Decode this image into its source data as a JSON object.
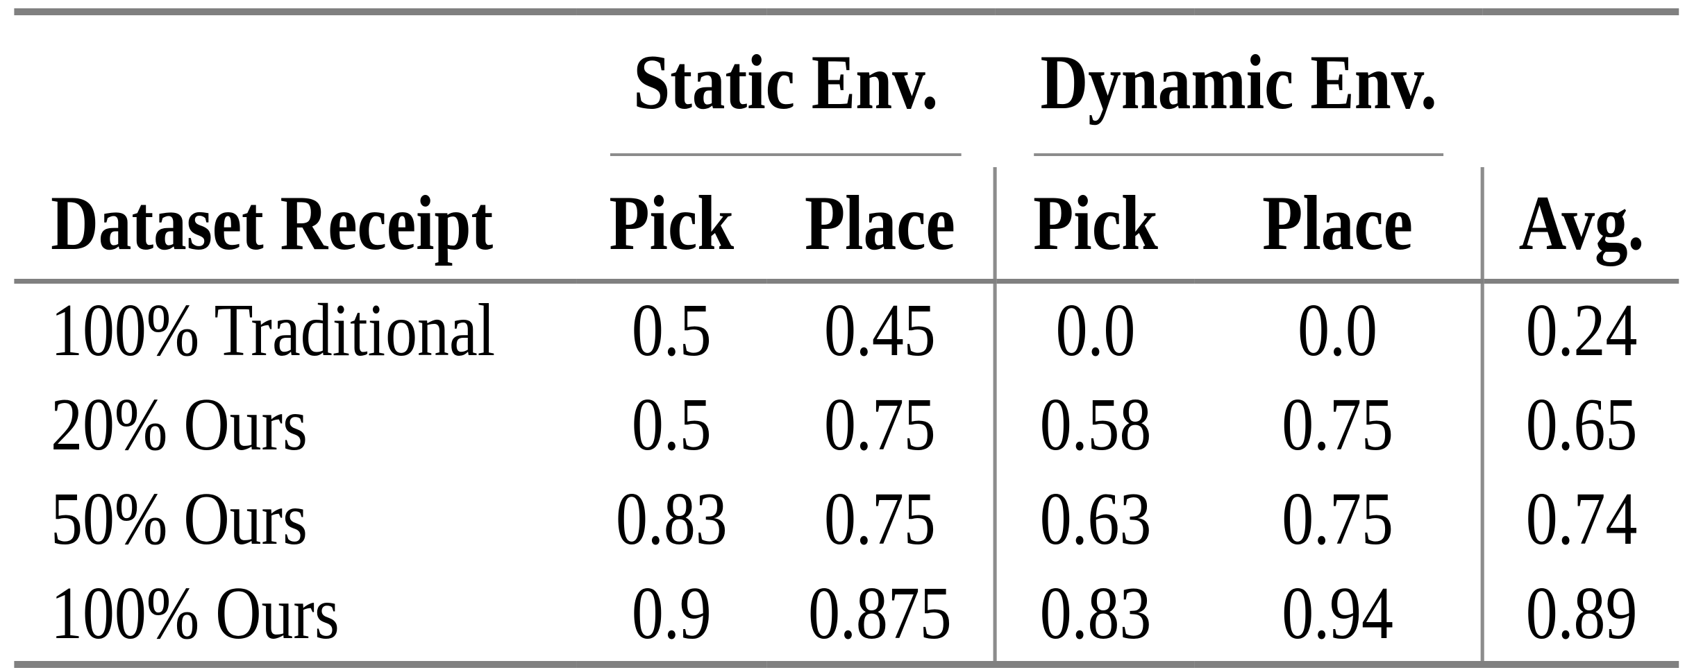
{
  "table": {
    "row_header": "Dataset Receipt",
    "groups": [
      {
        "label": "Static Env.",
        "columns": [
          "Pick",
          "Place"
        ]
      },
      {
        "label": "Dynamic Env.",
        "columns": [
          "Pick",
          "Place"
        ]
      }
    ],
    "avg_header": "Avg.",
    "rows": [
      {
        "label": "100% Traditional",
        "values": [
          "0.5",
          "0.45",
          "0.0",
          "0.0",
          "0.24"
        ]
      },
      {
        "label": "20% Ours",
        "values": [
          "0.5",
          "0.75",
          "0.58",
          "0.75",
          "0.65"
        ]
      },
      {
        "label": "50% Ours",
        "values": [
          "0.83",
          "0.75",
          "0.63",
          "0.75",
          "0.74"
        ]
      },
      {
        "label": "100% Ours",
        "values": [
          "0.9",
          "0.875",
          "0.83",
          "0.94",
          "0.89"
        ]
      }
    ]
  },
  "colors": {
    "heavy_rule": "#808080",
    "light_rule": "#8c8c8c",
    "text": "#000000",
    "background": "#ffffff"
  }
}
